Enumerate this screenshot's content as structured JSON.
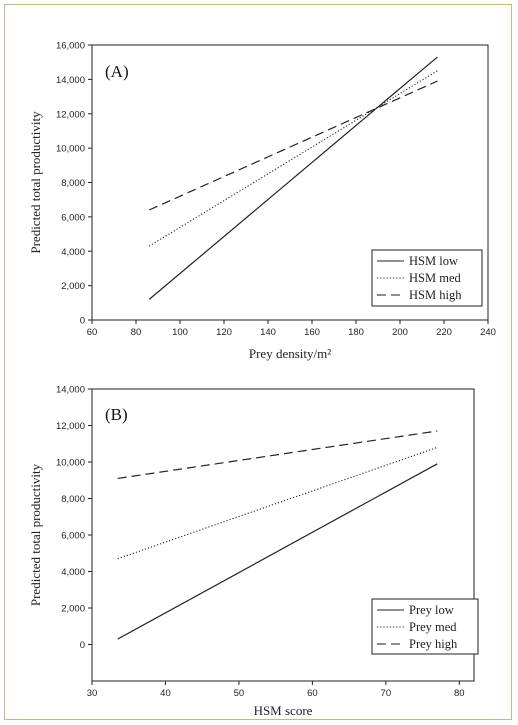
{
  "chart_data": [
    {
      "type": "line",
      "panel_label": "(A)",
      "xlabel": "Prey density/m²",
      "ylabel": "Predicted total productivity",
      "xlim": [
        60,
        240
      ],
      "ylim": [
        0,
        16000
      ],
      "x_ticks": [
        60,
        80,
        100,
        120,
        140,
        160,
        180,
        200,
        220,
        240
      ],
      "y_ticks": [
        0,
        2000,
        4000,
        6000,
        8000,
        10000,
        12000,
        14000,
        16000
      ],
      "x_tick_labels": [
        "60",
        "80",
        "100",
        "120",
        "140",
        "160",
        "180",
        "200",
        "220",
        "240"
      ],
      "y_tick_labels": [
        "0",
        "2,000",
        "4,000",
        "6,000",
        "8,000",
        "10,000",
        "12,000",
        "14,000",
        "16,000"
      ],
      "grid": false,
      "legend_position": "bottom-right",
      "series": [
        {
          "name": "HSM low",
          "style": "solid",
          "x": [
            86,
            217
          ],
          "y": [
            1200,
            15300
          ]
        },
        {
          "name": "HSM med",
          "style": "dotted",
          "x": [
            86,
            217
          ],
          "y": [
            4300,
            14500
          ]
        },
        {
          "name": "HSM high",
          "style": "dashed",
          "x": [
            86,
            217
          ],
          "y": [
            6400,
            13900
          ]
        }
      ]
    },
    {
      "type": "line",
      "panel_label": "(B)",
      "xlabel": "HSM score",
      "ylabel": "Predicted total productivity",
      "xlim": [
        30,
        82
      ],
      "ylim": [
        -2000,
        14000
      ],
      "x_ticks": [
        30,
        40,
        50,
        60,
        70,
        80
      ],
      "y_ticks": [
        0,
        2000,
        4000,
        6000,
        8000,
        10000,
        12000,
        14000
      ],
      "x_tick_labels": [
        "30",
        "40",
        "50",
        "60",
        "70",
        "80"
      ],
      "y_tick_labels": [
        "0",
        "2,000",
        "4,000",
        "6,000",
        "8,000",
        "10,000",
        "12,000",
        "14,000"
      ],
      "grid": false,
      "legend_position": "bottom-right",
      "series": [
        {
          "name": "Prey low",
          "style": "solid",
          "x": [
            33.5,
            77
          ],
          "y": [
            300,
            9900
          ]
        },
        {
          "name": "Prey med",
          "style": "dotted",
          "x": [
            33.5,
            77
          ],
          "y": [
            4700,
            10800
          ]
        },
        {
          "name": "Prey high",
          "style": "dashed",
          "x": [
            33.5,
            77
          ],
          "y": [
            9100,
            11700
          ]
        }
      ]
    }
  ]
}
